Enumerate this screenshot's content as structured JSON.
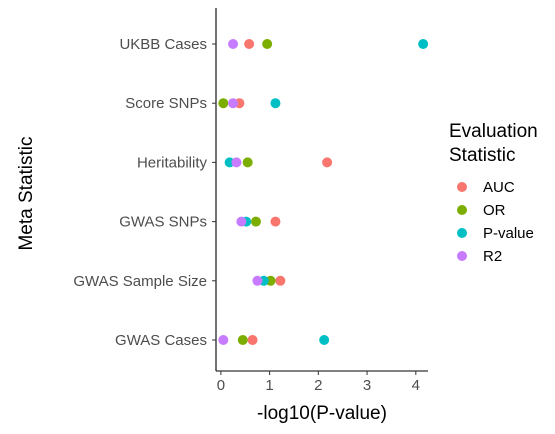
{
  "chart_data": {
    "type": "scatter",
    "xlabel": "-log10(P-value)",
    "ylabel": "Meta Statistic",
    "xlim": [
      -0.1,
      4.25
    ],
    "xticks": [
      0,
      1,
      2,
      3,
      4
    ],
    "categories": [
      "UKBB Cases",
      "Score SNPs",
      "Heritability",
      "GWAS SNPs",
      "GWAS Sample Size",
      "GWAS Cases"
    ],
    "legend": {
      "title_lines": [
        "Evaluation",
        "Statistic"
      ],
      "position": "right"
    },
    "grid": false,
    "series": [
      {
        "name": "AUC",
        "color": "#F8766D",
        "values": [
          0.58,
          0.38,
          2.18,
          1.12,
          1.22,
          0.65
        ]
      },
      {
        "name": "OR",
        "color": "#7CAE00",
        "values": [
          0.95,
          0.05,
          0.55,
          0.72,
          1.02,
          0.45
        ]
      },
      {
        "name": "P-value",
        "color": "#00BFC4",
        "values": [
          4.15,
          1.12,
          0.18,
          0.52,
          0.88,
          2.12
        ]
      },
      {
        "name": "R2",
        "color": "#C77CFF",
        "values": [
          0.25,
          0.25,
          0.32,
          0.42,
          0.75,
          0.05
        ]
      }
    ]
  }
}
